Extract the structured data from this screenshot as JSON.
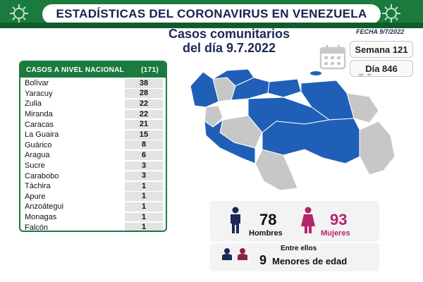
{
  "header": {
    "title": "ESTADÍSTICAS DEL CORONAVIRUS EN VENEZUELA",
    "subtitle_line1": "Casos comunitarios",
    "subtitle_line2": "del día 9.7.2022",
    "date": "FECHA 9/7/2022"
  },
  "info": {
    "week": "Semana 121",
    "day": "Día 846"
  },
  "national_table": {
    "header_label": "CASOS A NIVEL NACIONAL",
    "header_total": "(171)",
    "rows": [
      {
        "name": "Bolívar",
        "value": "38"
      },
      {
        "name": "Yaracuy",
        "value": "28"
      },
      {
        "name": "Zulia",
        "value": "22"
      },
      {
        "name": "Miranda",
        "value": "22"
      },
      {
        "name": "Caracas",
        "value": "21"
      },
      {
        "name": "La Guaira",
        "value": "15"
      },
      {
        "name": "Guárico",
        "value": "8"
      },
      {
        "name": "Aragua",
        "value": "6"
      },
      {
        "name": "Sucre",
        "value": "3"
      },
      {
        "name": "Carabobo",
        "value": "3"
      },
      {
        "name": "Táchira",
        "value": "1"
      },
      {
        "name": "Apure",
        "value": "1"
      },
      {
        "name": "Anzoátegui",
        "value": "1"
      },
      {
        "name": "Monagas",
        "value": "1"
      },
      {
        "name": "Falcón",
        "value": "1"
      }
    ]
  },
  "gender": {
    "men_count": "78",
    "men_label": "Hombres",
    "women_count": "93",
    "women_label": "Mujeres",
    "minors_prefix": "Entre ellos",
    "minors_count": "9",
    "minors_label": "Menores de edad"
  },
  "colors": {
    "header_green": "#1b7a3e",
    "map_blue": "#1f5fb8",
    "map_gray": "#c7c7c7",
    "women_pink": "#b5246b",
    "men_navy": "#1b2a56"
  },
  "icons": [
    "virus-icon",
    "calendar-icon",
    "man-icon",
    "woman-icon",
    "children-icon"
  ]
}
